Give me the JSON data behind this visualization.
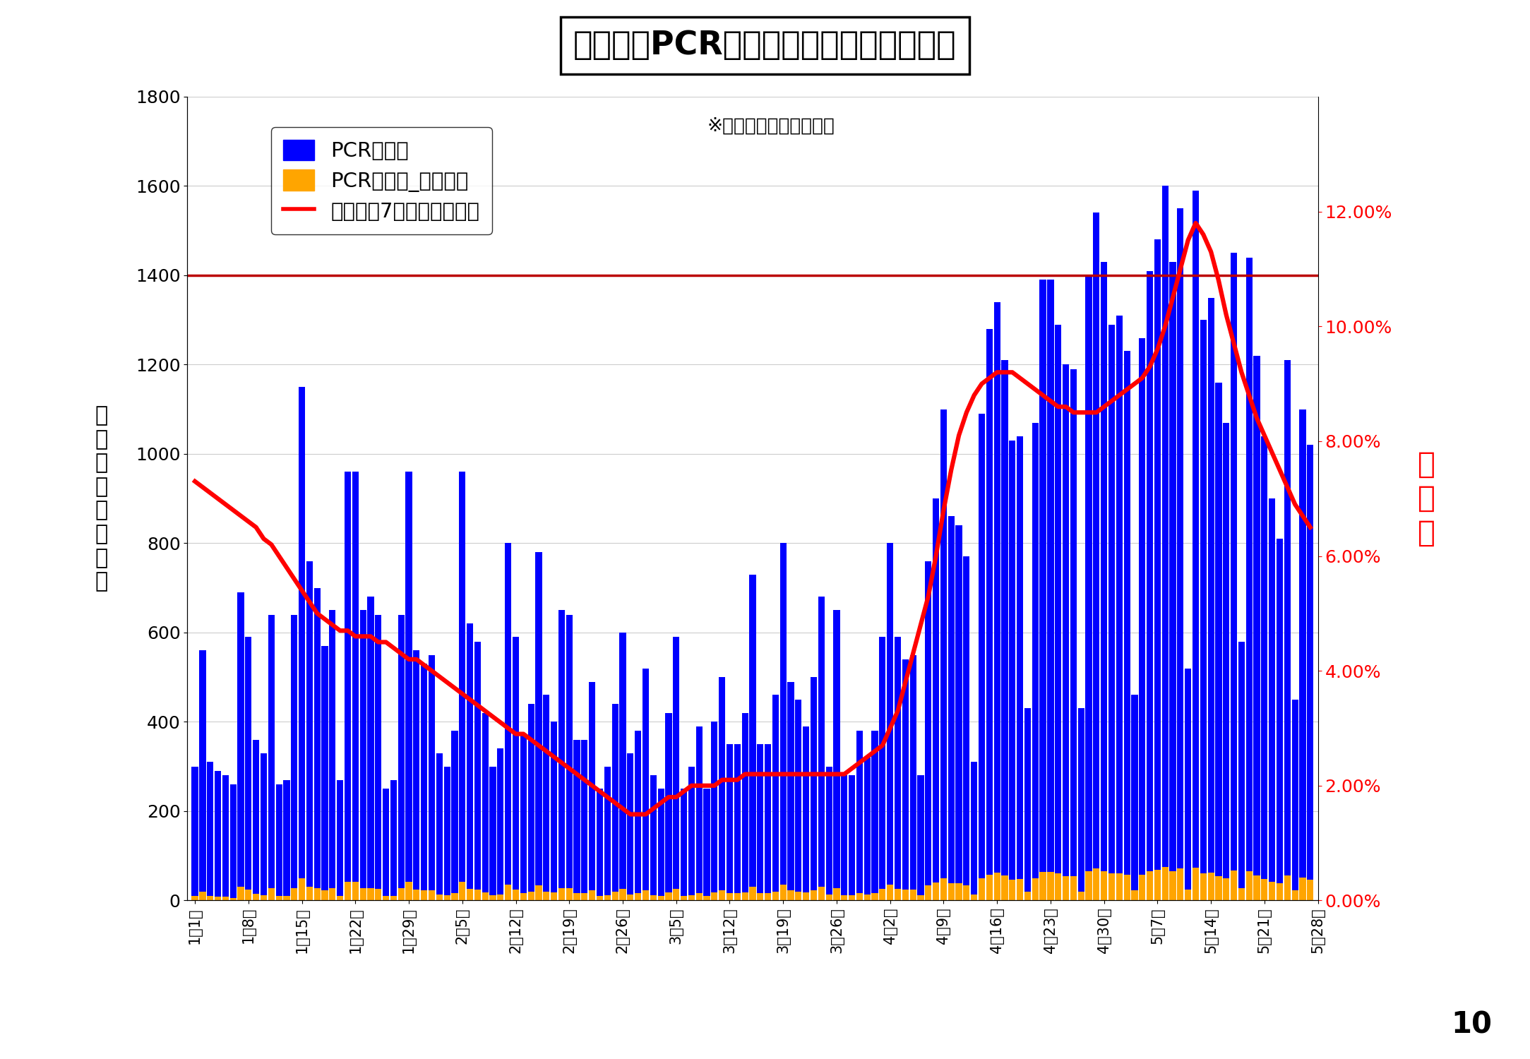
{
  "title": "奈良県のPCR検査件数及び陽性率の推移",
  "subtitle": "※県オープンデータより",
  "ylabel_left": "検\n査\n件\n数\n・\n陽\n性\n数",
  "ylabel_right": "陽\n性\n率",
  "note_number": "10",
  "legend_pcr": "PCR検査数",
  "legend_positive": "PCR検査数_陽性確認",
  "legend_rate": "陽性率（7日間移動平均）",
  "bar_color_blue": "#0000FF",
  "bar_color_yellow": "#FFA500",
  "line_color": "#FF0000",
  "hline_color": "#BB0000",
  "hline_value": 1400,
  "background_color": "#FFFFFF",
  "ylim_left": [
    0,
    1800
  ],
  "ylim_right": [
    0,
    0.14
  ],
  "yticks_left": [
    0,
    200,
    400,
    600,
    800,
    1000,
    1200,
    1400,
    1600,
    1800
  ],
  "yticks_right": [
    0.0,
    0.02,
    0.04,
    0.06,
    0.08,
    0.1,
    0.12
  ],
  "ytick_right_labels": [
    "0.00%",
    "2.00%",
    "4.00%",
    "6.00%",
    "8.00%",
    "10.00%",
    "12.00%"
  ],
  "xtick_positions": [
    0,
    7,
    14,
    21,
    28,
    35,
    42,
    49,
    56,
    63,
    70,
    77,
    84,
    91,
    98,
    105,
    112,
    119,
    126,
    133,
    140,
    147
  ],
  "xtick_labels": [
    "1月1日",
    "1月8日",
    "1月15日",
    "1月22日",
    "1月29日",
    "2月5日",
    "2月12日",
    "2月19日",
    "2月26日",
    "3月5日",
    "3月12日",
    "3月19日",
    "3月26日",
    "4月2日",
    "4月9日",
    "4月16日",
    "4月23日",
    "4月30日",
    "5月7日",
    "5月14日",
    "5月21日",
    "5月28日"
  ],
  "pcr_total": [
    300,
    560,
    310,
    290,
    280,
    260,
    690,
    590,
    360,
    330,
    640,
    260,
    270,
    640,
    1150,
    760,
    700,
    570,
    650,
    270,
    960,
    960,
    650,
    680,
    640,
    250,
    270,
    640,
    960,
    560,
    530,
    550,
    330,
    300,
    380,
    960,
    620,
    580,
    420,
    300,
    340,
    800,
    590,
    370,
    440,
    780,
    460,
    400,
    650,
    640,
    360,
    360,
    490,
    250,
    300,
    440,
    600,
    330,
    380,
    520,
    280,
    250,
    420,
    590,
    250,
    300,
    390,
    250,
    400,
    500,
    350,
    350,
    420,
    730,
    350,
    350,
    460,
    800,
    490,
    450,
    390,
    500,
    680,
    300,
    650,
    280,
    280,
    380,
    320,
    380,
    590,
    800,
    590,
    540,
    550,
    280,
    760,
    900,
    1100,
    860,
    840,
    770,
    310,
    1090,
    1280,
    1340,
    1210,
    1030,
    1040,
    430,
    1070,
    1390,
    1390,
    1290,
    1200,
    1190,
    430,
    1400,
    1540,
    1430,
    1290,
    1310,
    1230,
    460,
    1260,
    1410,
    1480,
    1600,
    1430,
    1550,
    520,
    1590,
    1300,
    1350,
    1160,
    1070,
    1450,
    580,
    1440,
    1220,
    1040,
    900,
    810,
    1210,
    450,
    1100,
    1020
  ],
  "pcr_positive": [
    10,
    20,
    10,
    8,
    8,
    5,
    30,
    25,
    15,
    12,
    28,
    10,
    10,
    28,
    50,
    30,
    28,
    22,
    28,
    10,
    42,
    42,
    28,
    28,
    26,
    10,
    10,
    28,
    42,
    25,
    22,
    22,
    14,
    12,
    16,
    42,
    26,
    25,
    18,
    12,
    14,
    35,
    25,
    16,
    20,
    34,
    20,
    18,
    28,
    28,
    16,
    16,
    22,
    10,
    12,
    20,
    26,
    14,
    16,
    22,
    12,
    10,
    18,
    26,
    10,
    12,
    16,
    10,
    18,
    22,
    16,
    16,
    18,
    30,
    16,
    16,
    20,
    35,
    22,
    20,
    18,
    22,
    30,
    14,
    28,
    12,
    12,
    16,
    14,
    16,
    26,
    35,
    26,
    24,
    24,
    12,
    34,
    40,
    50,
    38,
    38,
    34,
    14,
    50,
    58,
    62,
    56,
    47,
    48,
    20,
    49,
    64,
    64,
    60,
    55,
    55,
    20,
    65,
    72,
    66,
    60,
    61,
    57,
    22,
    58,
    65,
    68,
    75,
    66,
    72,
    24,
    74,
    60,
    62,
    54,
    50,
    67,
    27,
    66,
    56,
    48,
    42,
    38,
    56,
    22,
    51,
    47
  ],
  "positivity_rate_7day": [
    0.073,
    0.072,
    0.071,
    0.07,
    0.069,
    0.068,
    0.067,
    0.066,
    0.065,
    0.063,
    0.062,
    0.06,
    0.058,
    0.056,
    0.054,
    0.052,
    0.05,
    0.049,
    0.048,
    0.047,
    0.047,
    0.046,
    0.046,
    0.046,
    0.045,
    0.045,
    0.044,
    0.043,
    0.042,
    0.042,
    0.041,
    0.04,
    0.039,
    0.038,
    0.037,
    0.036,
    0.035,
    0.034,
    0.033,
    0.032,
    0.031,
    0.03,
    0.029,
    0.029,
    0.028,
    0.027,
    0.026,
    0.025,
    0.024,
    0.023,
    0.022,
    0.021,
    0.02,
    0.019,
    0.018,
    0.017,
    0.016,
    0.015,
    0.015,
    0.015,
    0.016,
    0.017,
    0.018,
    0.018,
    0.019,
    0.02,
    0.02,
    0.02,
    0.02,
    0.021,
    0.021,
    0.021,
    0.022,
    0.022,
    0.022,
    0.022,
    0.022,
    0.022,
    0.022,
    0.022,
    0.022,
    0.022,
    0.022,
    0.022,
    0.022,
    0.022,
    0.023,
    0.024,
    0.025,
    0.026,
    0.027,
    0.03,
    0.033,
    0.038,
    0.043,
    0.048,
    0.053,
    0.06,
    0.068,
    0.075,
    0.081,
    0.085,
    0.088,
    0.09,
    0.091,
    0.092,
    0.092,
    0.092,
    0.091,
    0.09,
    0.089,
    0.088,
    0.087,
    0.086,
    0.086,
    0.085,
    0.085,
    0.085,
    0.085,
    0.086,
    0.087,
    0.088,
    0.089,
    0.09,
    0.091,
    0.093,
    0.096,
    0.1,
    0.105,
    0.11,
    0.115,
    0.118,
    0.116,
    0.113,
    0.108,
    0.102,
    0.097,
    0.092,
    0.088,
    0.084,
    0.081,
    0.078,
    0.075,
    0.072,
    0.069,
    0.067,
    0.065
  ]
}
